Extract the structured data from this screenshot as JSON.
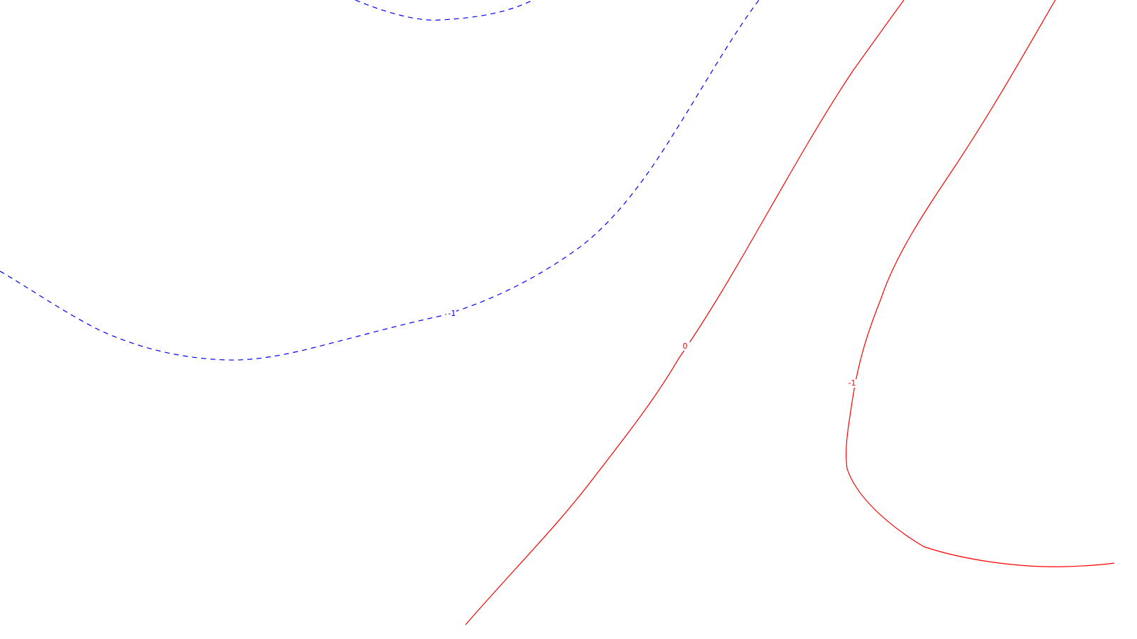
{
  "colors": {
    "background": "#ffffff",
    "blue": "#0000ff",
    "red": "#ff0000"
  },
  "contours": [
    {
      "id": "blue-contour-top",
      "style": "dashed",
      "color": "#0000ff",
      "label": ""
    },
    {
      "id": "blue-contour-1",
      "style": "dashed",
      "color": "#0000ff",
      "label": "-1"
    },
    {
      "id": "red-contour-0",
      "style": "solid",
      "color": "#ff0000",
      "label": "0"
    },
    {
      "id": "red-contour-minus1",
      "style": "solid",
      "color": "#ff0000",
      "label": "-1"
    }
  ]
}
